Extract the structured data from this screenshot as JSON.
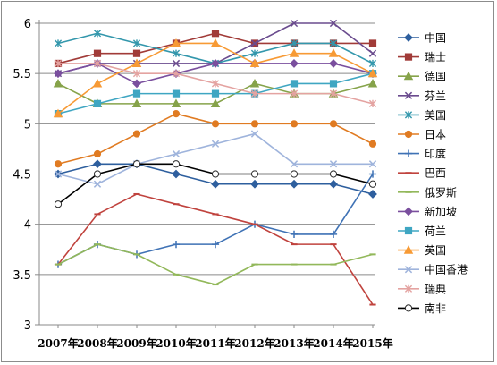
{
  "chart_data": {
    "type": "line",
    "x": [
      "2007年",
      "2008年",
      "2009年",
      "2010年",
      "2011年",
      "2012年",
      "2013年",
      "2014年",
      "2015年"
    ],
    "ylim": [
      3,
      6
    ],
    "yticks": [
      "3",
      "3.5",
      "4",
      "4.5",
      "5",
      "5.5",
      "6"
    ],
    "grid": "horizontal",
    "legend_position": "right",
    "series": [
      {
        "name": "中国",
        "color": "#2e5f9e",
        "marker": "diamond",
        "values": [
          4.5,
          4.6,
          4.6,
          4.5,
          4.4,
          4.4,
          4.4,
          4.4,
          4.3
        ]
      },
      {
        "name": "瑞士",
        "color": "#a13b38",
        "marker": "square",
        "values": [
          5.6,
          5.7,
          5.7,
          5.8,
          5.9,
          5.8,
          5.8,
          5.8,
          5.8
        ]
      },
      {
        "name": "德国",
        "color": "#86a34a",
        "marker": "triangle",
        "values": [
          5.4,
          5.2,
          5.2,
          5.2,
          5.2,
          5.4,
          5.3,
          5.3,
          5.4
        ]
      },
      {
        "name": "芬兰",
        "color": "#6a4b8e",
        "marker": "x",
        "values": [
          5.5,
          5.6,
          5.6,
          5.6,
          5.6,
          5.8,
          6.0,
          6.0,
          5.7
        ]
      },
      {
        "name": "美国",
        "color": "#3397ac",
        "marker": "asterisk",
        "values": [
          5.8,
          5.9,
          5.8,
          5.7,
          5.6,
          5.7,
          5.8,
          5.8,
          5.6
        ]
      },
      {
        "name": "日本",
        "color": "#e07b22",
        "marker": "circle",
        "values": [
          4.6,
          4.7,
          4.9,
          5.1,
          5.0,
          5.0,
          5.0,
          5.0,
          4.8
        ]
      },
      {
        "name": "印度",
        "color": "#3f72b5",
        "marker": "plus",
        "values": [
          3.6,
          3.8,
          3.7,
          3.8,
          3.8,
          4.0,
          3.9,
          3.9,
          4.5
        ]
      },
      {
        "name": "巴西",
        "color": "#c0433e",
        "marker": "dash",
        "values": [
          3.6,
          4.1,
          4.3,
          4.2,
          4.1,
          4.0,
          3.8,
          3.8,
          3.2
        ]
      },
      {
        "name": "俄罗斯",
        "color": "#92b85a",
        "marker": "dash",
        "values": [
          3.6,
          3.8,
          3.7,
          3.5,
          3.4,
          3.6,
          3.6,
          3.6,
          3.7
        ]
      },
      {
        "name": "新加坡",
        "color": "#7a4f9e",
        "marker": "diamond",
        "values": [
          5.5,
          5.6,
          5.4,
          5.5,
          5.6,
          5.6,
          5.6,
          5.6,
          5.5
        ]
      },
      {
        "name": "荷兰",
        "color": "#3fa6c2",
        "marker": "square",
        "values": [
          5.1,
          5.2,
          5.3,
          5.3,
          5.3,
          5.3,
          5.4,
          5.4,
          5.5
        ]
      },
      {
        "name": "英国",
        "color": "#f79a35",
        "marker": "triangle",
        "values": [
          5.1,
          5.4,
          5.6,
          5.8,
          5.8,
          5.6,
          5.7,
          5.7,
          5.5
        ]
      },
      {
        "name": "中国香港",
        "color": "#9fb4dc",
        "marker": "x",
        "values": [
          4.5,
          4.4,
          4.6,
          4.7,
          4.8,
          4.9,
          4.6,
          4.6,
          4.6
        ]
      },
      {
        "name": "瑞典",
        "color": "#e4a3a1",
        "marker": "asterisk",
        "values": [
          5.6,
          5.6,
          5.5,
          5.5,
          5.4,
          5.3,
          5.3,
          5.3,
          5.2
        ]
      },
      {
        "name": "南非",
        "color": "#000000",
        "marker": "circle-hollow",
        "values": [
          4.2,
          4.5,
          4.6,
          4.6,
          4.5,
          4.5,
          4.5,
          4.5,
          4.4
        ]
      }
    ]
  }
}
